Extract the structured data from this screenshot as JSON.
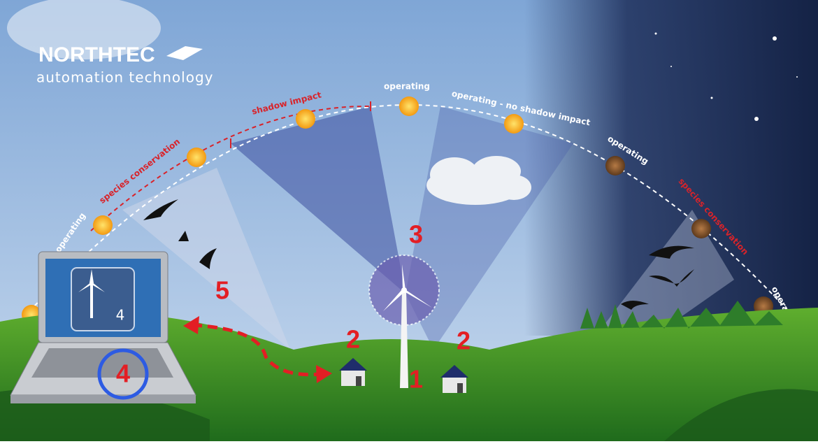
{
  "logo": {
    "name": "NORTHTEC",
    "tagline": "automation technology"
  },
  "arc_labels": [
    "operating",
    "species conservation",
    "shadow impact",
    "operating",
    "operating - no shadow impact",
    "operating",
    "species conservation",
    "operating"
  ],
  "markers": [
    "1",
    "2",
    "2",
    "3",
    "4",
    "5"
  ],
  "screen_label": "4"
}
